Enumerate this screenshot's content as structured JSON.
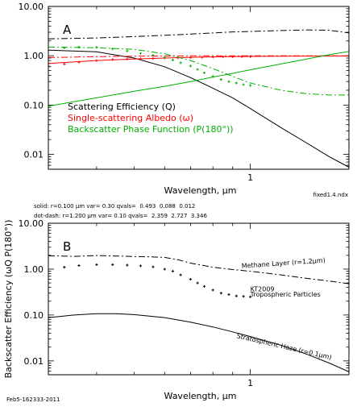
{
  "chart_data": [
    {
      "type": "line",
      "panel_label": "A",
      "xlabel": "Wavelength, μm",
      "xscale": "log",
      "yscale": "log",
      "xlim": [
        0.3,
        1.8
      ],
      "ylim": [
        0.005,
        10
      ],
      "y_tick_labels": [
        "10.00",
        "1.00",
        "0.10",
        "0.01"
      ],
      "x_tick_labels": [
        "1"
      ],
      "legend": [
        {
          "label": "Scattering Efficiency (Q)",
          "color": "#000000"
        },
        {
          "label": "Single-scattering Albedo (ω)",
          "color": "#ff0000"
        },
        {
          "label": "Backscatter Phase Function (P(180°))",
          "color": "#00b000"
        }
      ],
      "legend_placement": "middle-left",
      "series": [
        {
          "color": "#000000",
          "style": "solid",
          "x": [
            0.3,
            0.4,
            0.5,
            0.6,
            0.7,
            0.8,
            0.9,
            1.0,
            1.2,
            1.4,
            1.6,
            1.8
          ],
          "y": [
            1.3,
            1.2,
            0.9,
            0.6,
            0.36,
            0.22,
            0.14,
            0.085,
            0.035,
            0.017,
            0.009,
            0.0055
          ]
        },
        {
          "color": "#000000",
          "style": "dash-dot",
          "x": [
            0.3,
            0.4,
            0.5,
            0.6,
            0.7,
            0.8,
            0.9,
            1.0,
            1.2,
            1.4,
            1.6,
            1.8
          ],
          "y": [
            2.2,
            2.3,
            2.45,
            2.6,
            2.75,
            2.9,
            3.05,
            3.1,
            3.25,
            3.35,
            3.3,
            2.9
          ]
        },
        {
          "color": "#ff0000",
          "style": "solid",
          "x": [
            0.3,
            0.4,
            0.5,
            0.6,
            0.7,
            0.8,
            0.9,
            1.0,
            1.2,
            1.4,
            1.6,
            1.8
          ],
          "y": [
            0.7,
            0.8,
            0.86,
            0.9,
            0.93,
            0.95,
            0.96,
            0.97,
            0.98,
            0.985,
            0.99,
            0.99
          ]
        },
        {
          "color": "#ff0000",
          "style": "dash-dot",
          "x": [
            0.3,
            0.4,
            0.5,
            0.6,
            0.7,
            0.8,
            0.9,
            1.0,
            1.2,
            1.4,
            1.6,
            1.8
          ],
          "y": [
            0.92,
            0.96,
            0.98,
            0.99,
            0.995,
            0.995,
            1.0,
            1.0,
            1.0,
            1.0,
            1.0,
            1.0
          ]
        },
        {
          "color": "#ff0000",
          "style": "points",
          "x": [
            0.3,
            0.33,
            0.36,
            0.4,
            0.44,
            0.48,
            0.52,
            0.56,
            0.6,
            0.65,
            0.7,
            0.75,
            0.8,
            0.85,
            0.9,
            0.95,
            1.0
          ],
          "y": [
            0.62,
            0.68,
            0.74,
            0.8,
            0.84,
            0.86,
            0.87,
            0.88,
            0.9,
            0.91,
            0.92,
            0.93,
            0.94,
            0.95,
            0.95,
            0.96,
            0.96
          ]
        },
        {
          "color": "#00b000",
          "style": "solid",
          "x": [
            0.3,
            0.4,
            0.5,
            0.6,
            0.7,
            0.8,
            0.9,
            1.0,
            1.2,
            1.4,
            1.6,
            1.8
          ],
          "y": [
            0.095,
            0.14,
            0.19,
            0.24,
            0.3,
            0.37,
            0.44,
            0.52,
            0.68,
            0.86,
            1.05,
            1.22
          ]
        },
        {
          "color": "#00b000",
          "style": "dash-dot",
          "x": [
            0.3,
            0.4,
            0.5,
            0.6,
            0.7,
            0.8,
            0.9,
            1.0,
            1.2,
            1.4,
            1.6,
            1.8
          ],
          "y": [
            1.5,
            1.45,
            1.35,
            1.1,
            0.8,
            0.55,
            0.38,
            0.28,
            0.2,
            0.17,
            0.16,
            0.16
          ]
        },
        {
          "color": "#00b000",
          "style": "points",
          "x": [
            0.33,
            0.36,
            0.4,
            0.44,
            0.48,
            0.52,
            0.56,
            0.6,
            0.63,
            0.66,
            0.7,
            0.73,
            0.76,
            0.8,
            0.84,
            0.88,
            0.92,
            0.96,
            1.0
          ],
          "y": [
            1.45,
            1.5,
            1.48,
            1.38,
            1.25,
            1.12,
            1.02,
            0.92,
            0.82,
            0.72,
            0.62,
            0.53,
            0.45,
            0.38,
            0.33,
            0.3,
            0.28,
            0.26,
            0.25
          ]
        }
      ]
    },
    {
      "type": "line",
      "panel_label": "B",
      "xlabel": "Wavelength, μm",
      "ylabel": "Backscatter Efficiency (ωQ P(180°))",
      "xscale": "log",
      "yscale": "log",
      "xlim": [
        0.3,
        1.8
      ],
      "ylim": [
        0.005,
        10
      ],
      "y_tick_labels": [
        "10.00",
        "1.00",
        "0.10",
        "0.01"
      ],
      "x_tick_labels": [
        "1"
      ],
      "series": [
        {
          "color": "#000000",
          "style": "dash-dot",
          "x": [
            0.3,
            0.35,
            0.4,
            0.45,
            0.5,
            0.55,
            0.6,
            0.65,
            0.7,
            0.8,
            0.9,
            1.0,
            1.2,
            1.4,
            1.6,
            1.8
          ],
          "y": [
            1.95,
            1.9,
            1.98,
            1.93,
            1.88,
            1.85,
            1.8,
            1.6,
            1.35,
            1.1,
            0.98,
            0.9,
            0.75,
            0.63,
            0.55,
            0.48
          ]
        },
        {
          "color": "#000000",
          "style": "points",
          "x": [
            0.33,
            0.36,
            0.4,
            0.44,
            0.48,
            0.52,
            0.56,
            0.6,
            0.63,
            0.66,
            0.7,
            0.73,
            0.76,
            0.8,
            0.84,
            0.88,
            0.92,
            0.96,
            1.0
          ],
          "y": [
            1.1,
            1.2,
            1.25,
            1.25,
            1.22,
            1.18,
            1.12,
            1.0,
            0.9,
            0.75,
            0.6,
            0.5,
            0.42,
            0.35,
            0.3,
            0.28,
            0.26,
            0.255,
            0.25
          ]
        },
        {
          "color": "#000000",
          "style": "solid",
          "x": [
            0.3,
            0.35,
            0.4,
            0.45,
            0.5,
            0.6,
            0.7,
            0.8,
            0.9,
            1.0,
            1.2,
            1.4,
            1.6,
            1.8
          ],
          "y": [
            0.088,
            0.1,
            0.107,
            0.107,
            0.102,
            0.088,
            0.07,
            0.055,
            0.043,
            0.034,
            0.022,
            0.014,
            0.009,
            0.0058
          ]
        }
      ],
      "annotations": [
        {
          "text": "Methane Layer (r=1.2μm)",
          "x": 0.95,
          "y": 1.05,
          "angle": -4
        },
        {
          "text": "KT2009",
          "x": 1.0,
          "y": 0.33
        },
        {
          "text": "Tropospheric Particles",
          "x": 1.0,
          "y": 0.25
        },
        {
          "text": "Stratospheric Haze (r=0.1μm)",
          "x": 0.92,
          "y": 0.032,
          "angle": 13
        }
      ]
    }
  ],
  "labels": {
    "fixed_file": "fixed1.4.ndx",
    "param_solid": "solid: r=0.100 μm var= 0.30 qvals=  0.493  0.088  0.012",
    "param_dotdash": "dot-dash: r=1.200 μm var= 0.10 qvals=  2.359  2.727  3.346",
    "timestamp": "Feb5-162333-2011"
  }
}
